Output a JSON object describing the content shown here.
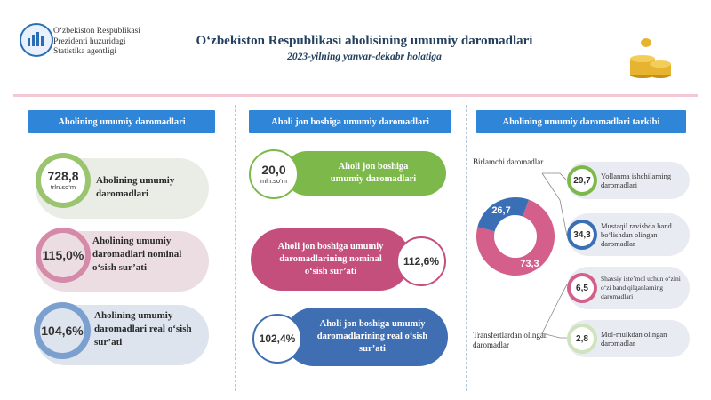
{
  "header": {
    "agency_lines": [
      "O‘zbekiston Respublikasi",
      "Prezidenti huzuridagi",
      "Statistika agentligi"
    ],
    "title": "O‘zbekiston Respublikasi aholisining umumiy daromadlari",
    "subtitle": "2023-yilning yanvar-dekabr holatiga"
  },
  "left": {
    "header": "Aholining umumiy daromadlari",
    "cards": [
      {
        "value": "728,8",
        "unit": "trln.so‘m",
        "label_lines": [
          "Aholining umumiy",
          "daromadlari"
        ],
        "color": "#cfe3bc"
      },
      {
        "value": "115,0%",
        "unit": "",
        "label_lines": [
          "Aholining umumiy",
          "daromadlari nominal",
          "o‘sish sur’ati"
        ],
        "color": "#e9c4d2"
      },
      {
        "value": "104,6%",
        "unit": "",
        "label_lines": [
          "Aholining umumiy",
          "daromadlari real o‘sish",
          "sur’ati"
        ],
        "color": "#c6d5ea"
      }
    ]
  },
  "middle": {
    "header": "Aholi jon boshiga umumiy daromadlari",
    "cards": [
      {
        "value": "20,0",
        "unit": "mln.so‘m",
        "label_lines": [
          "Aholi jon boshiga",
          "umumiy daromadlari"
        ],
        "color": "#7db94a"
      },
      {
        "value": "112,6%",
        "unit": "",
        "label_lines": [
          "Aholi jon boshiga umumiy",
          "daromadlarining nominal",
          "o‘sish sur’ati"
        ],
        "color": "#c44f7d"
      },
      {
        "value": "102,4%",
        "unit": "",
        "label_lines": [
          "Aholi jon boshiga umumiy",
          "daromadlarining real o‘sish",
          "sur’ati"
        ],
        "color": "#3f6fb2"
      }
    ]
  },
  "right": {
    "header": "Aholining umumiy daromadlari tarkibi",
    "donut": {
      "label_top": "Birlamchi daromadlar",
      "label_bottom_lines": [
        "Transfertlardan olingan",
        "daromadlar"
      ],
      "segments": [
        {
          "value": 73.3,
          "text": "73,3",
          "color": "#d45f8b"
        },
        {
          "value": 26.7,
          "text": "26,7",
          "color": "#3a6fb6"
        }
      ]
    },
    "items": [
      {
        "value": "29,7",
        "label_lines": [
          "Yollanma ishchilarning",
          "daromadlari"
        ],
        "color": "#7db94a"
      },
      {
        "value": "34,3",
        "label_lines": [
          "Mustaqil ravishda band",
          "bo‘lishdan olingan",
          "daromadlar"
        ],
        "color": "#3a6fb6"
      },
      {
        "value": "6,5",
        "label_lines": [
          "Shaxsiy iste’mol uchun o‘zini",
          "o‘zi band qilganlarning",
          "daromadlari"
        ],
        "color": "#d45f8b"
      },
      {
        "value": "2,8",
        "label_lines": [
          "Mol-mulkdan olingan",
          "daromadlar"
        ],
        "color": "#cfe3bc"
      }
    ]
  }
}
